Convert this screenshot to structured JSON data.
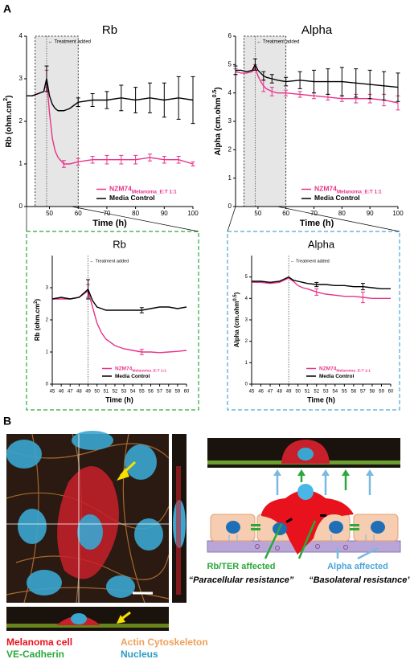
{
  "panel_labels": [
    "A",
    "B"
  ],
  "chart_data": [
    {
      "type": "line",
      "title": "Rb",
      "xlabel": "Time (h)",
      "ylabel": "Rb (ohm.cm",
      "ylabel_sup": "2",
      "ylabel_end": ")",
      "annotation": {
        "text": "← Treatment added",
        "x": 49
      },
      "shade": [
        45,
        60
      ],
      "legend": "lower right",
      "xlim": [
        42,
        100
      ],
      "xticks": [
        50,
        60,
        70,
        80,
        90,
        100
      ],
      "ylim": [
        0,
        4
      ],
      "yticks": [
        0,
        1,
        2,
        3,
        4
      ],
      "x": [
        42,
        44,
        46,
        48,
        49,
        50,
        51,
        52,
        53,
        55,
        57,
        60,
        65,
        70,
        75,
        80,
        85,
        90,
        95,
        100
      ],
      "series": [
        {
          "name": "NZM74",
          "name_sub": "Melanoma_E:T 1:1",
          "color": "#e8338a",
          "values": [
            2.6,
            2.6,
            2.65,
            2.7,
            3.0,
            2.2,
            1.6,
            1.3,
            1.15,
            1.0,
            1.0,
            1.05,
            1.1,
            1.1,
            1.1,
            1.1,
            1.15,
            1.1,
            1.1,
            1.0
          ],
          "errors": [
            null,
            null,
            null,
            null,
            0.2,
            null,
            null,
            null,
            null,
            0.08,
            null,
            0.08,
            0.08,
            0.1,
            0.1,
            0.1,
            0.08,
            0.08,
            0.08,
            0.05
          ]
        },
        {
          "name": "Media Control",
          "color": "#000000",
          "values": [
            2.6,
            2.6,
            2.65,
            2.7,
            3.0,
            2.6,
            2.4,
            2.3,
            2.25,
            2.25,
            2.3,
            2.45,
            2.5,
            2.5,
            2.55,
            2.5,
            2.55,
            2.5,
            2.55,
            2.5
          ],
          "errors": [
            null,
            null,
            null,
            null,
            0.3,
            null,
            null,
            null,
            null,
            null,
            null,
            0.1,
            0.15,
            0.2,
            0.3,
            0.3,
            0.35,
            0.4,
            0.5,
            0.55
          ]
        }
      ]
    },
    {
      "type": "line",
      "title": "Alpha",
      "xlabel": "Time (h)",
      "ylabel": "Alpha (cm.ohm",
      "ylabel_sup": "0.5",
      "ylabel_end": ")",
      "annotation": {
        "text": "← Treatment added",
        "x": 49
      },
      "shade": [
        45,
        60
      ],
      "legend": "lower right",
      "xlim": [
        42,
        100
      ],
      "xticks": [
        50,
        60,
        70,
        80,
        90,
        100
      ],
      "ylim": [
        0,
        6
      ],
      "yticks": [
        0,
        1,
        2,
        3,
        4,
        5,
        6
      ],
      "x": [
        42,
        44,
        46,
        48,
        49,
        50,
        51,
        52,
        53,
        55,
        57,
        60,
        65,
        70,
        75,
        80,
        85,
        90,
        95,
        100
      ],
      "series": [
        {
          "name": "NZM74",
          "name_sub": "Melanoma_E:T 1:1",
          "color": "#e8338a",
          "values": [
            4.75,
            4.7,
            4.7,
            4.75,
            4.9,
            4.6,
            4.4,
            4.25,
            4.15,
            4.05,
            4.0,
            4.0,
            3.95,
            3.9,
            3.85,
            3.8,
            3.8,
            3.8,
            3.75,
            3.65
          ],
          "errors": [
            0.1,
            null,
            null,
            null,
            0.1,
            null,
            null,
            0.2,
            null,
            0.15,
            null,
            0.1,
            0.1,
            0.1,
            0.1,
            0.1,
            0.15,
            0.15,
            0.2,
            0.25
          ]
        },
        {
          "name": "Media Control",
          "color": "#000000",
          "values": [
            4.8,
            4.8,
            4.75,
            4.8,
            5.0,
            4.8,
            4.7,
            4.6,
            4.55,
            4.5,
            4.45,
            4.4,
            4.45,
            4.4,
            4.4,
            4.4,
            4.35,
            4.3,
            4.25,
            4.2
          ],
          "errors": [
            0.15,
            null,
            null,
            null,
            0.2,
            null,
            null,
            0.15,
            null,
            0.15,
            null,
            0.15,
            0.3,
            0.4,
            0.45,
            0.5,
            0.5,
            0.5,
            0.5,
            0.5
          ]
        }
      ]
    },
    {
      "type": "line",
      "title": "Rb",
      "xlabel": "Time (h)",
      "ylabel": "Rb (ohm.cm",
      "ylabel_sup": "2",
      "ylabel_end": ")",
      "annotation": {
        "text": "← Treatment added",
        "x": 49
      },
      "legend": "lower right",
      "xlim": [
        45,
        60
      ],
      "xticks": [
        45,
        46,
        47,
        48,
        49,
        50,
        51,
        52,
        53,
        54,
        55,
        56,
        57,
        58,
        59,
        60
      ],
      "ylim": [
        0,
        4
      ],
      "yticks": [
        0,
        1,
        2,
        3
      ],
      "x": [
        45,
        46,
        47,
        48,
        49,
        49.5,
        50,
        50.5,
        51,
        52,
        53,
        54,
        55,
        56,
        57,
        58,
        59,
        60
      ],
      "series": [
        {
          "name": "NZM74",
          "name_sub": "Melanoma_E:T 1:1",
          "color": "#e8338a",
          "values": [
            2.65,
            2.65,
            2.65,
            2.7,
            2.9,
            2.4,
            1.9,
            1.6,
            1.4,
            1.2,
            1.1,
            1.05,
            1.0,
            1.0,
            0.98,
            1.0,
            1.02,
            1.05
          ],
          "errors": [
            null,
            null,
            null,
            null,
            0.2,
            null,
            null,
            null,
            null,
            null,
            null,
            null,
            0.08,
            null,
            null,
            null,
            null,
            null
          ]
        },
        {
          "name": "Media Control",
          "color": "#000000",
          "values": [
            2.65,
            2.7,
            2.65,
            2.7,
            2.95,
            2.6,
            2.4,
            2.35,
            2.3,
            2.3,
            2.3,
            2.3,
            2.3,
            2.35,
            2.4,
            2.4,
            2.35,
            2.4
          ],
          "errors": [
            null,
            null,
            null,
            null,
            0.3,
            null,
            null,
            null,
            null,
            null,
            null,
            null,
            0.08,
            null,
            null,
            null,
            null,
            null
          ]
        }
      ]
    },
    {
      "type": "line",
      "title": "Alpha",
      "xlabel": "Time (h)",
      "ylabel": "Alpha (cm.ohm",
      "ylabel_sup": "0.5",
      "ylabel_end": ")",
      "annotation": {
        "text": "← Treatment added",
        "x": 49
      },
      "legend": "lower right",
      "xlim": [
        45,
        60
      ],
      "xticks": [
        45,
        46,
        47,
        48,
        49,
        50,
        51,
        52,
        53,
        54,
        55,
        56,
        57,
        58,
        59,
        60
      ],
      "ylim": [
        0,
        6
      ],
      "yticks": [
        0,
        1,
        2,
        3,
        4,
        5
      ],
      "x": [
        45,
        46,
        47,
        48,
        49,
        49.5,
        50,
        50.5,
        51,
        52,
        53,
        54,
        55,
        56,
        57,
        58,
        59,
        60
      ],
      "series": [
        {
          "name": "NZM74",
          "name_sub": "Melanoma_E:T 1:1",
          "color": "#e8338a",
          "values": [
            4.75,
            4.75,
            4.7,
            4.75,
            4.95,
            4.8,
            4.6,
            4.5,
            4.45,
            4.3,
            4.2,
            4.15,
            4.1,
            4.1,
            4.05,
            4.0,
            4.0,
            4.0
          ],
          "errors": [
            null,
            null,
            null,
            null,
            null,
            null,
            null,
            null,
            null,
            0.15,
            null,
            null,
            null,
            null,
            0.25,
            null,
            null,
            null
          ]
        },
        {
          "name": "Media Control",
          "color": "#000000",
          "values": [
            4.8,
            4.8,
            4.75,
            4.8,
            5.0,
            4.85,
            4.8,
            4.75,
            4.7,
            4.65,
            4.65,
            4.6,
            4.6,
            4.55,
            4.55,
            4.5,
            4.45,
            4.45
          ],
          "errors": [
            null,
            null,
            null,
            null,
            null,
            null,
            null,
            null,
            null,
            0.1,
            null,
            null,
            null,
            null,
            0.15,
            null,
            null,
            null
          ]
        }
      ]
    }
  ],
  "panel_b": {
    "stain_legend": [
      {
        "text": "Melanoma cell",
        "color": "#e8121c"
      },
      {
        "text": "VE-Cadherin",
        "color": "#2aa83a"
      },
      {
        "text": "Actin Cytoskeleton",
        "color": "#f0a05a"
      },
      {
        "text": "Nucleus",
        "color": "#2a9cc0"
      }
    ],
    "rb_label": "Rb/TER  affected",
    "rb_note": "“Paracellular resistance”",
    "alpha_label": "Alpha affected",
    "alpha_note": "“Basolateral resistance”"
  }
}
